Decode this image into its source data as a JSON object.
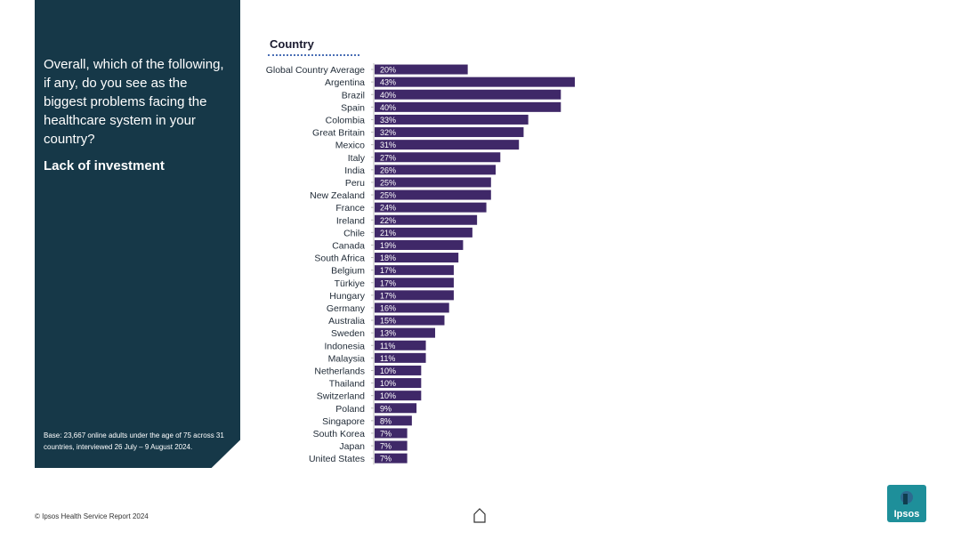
{
  "panel": {
    "question": "Overall, which of the following, if any, do you see as the biggest problems facing the healthcare system in your country?",
    "subtitle": "Lack of investment",
    "base_note": "Base: 23,667 online adults under the age of 75 across 31 countries, interviewed 26 July – 9 August 2024."
  },
  "chart_heading": "Country",
  "footer": "© Ipsos Health Service Report 2024",
  "logo_text": "Ipsos",
  "colors": {
    "panel": "#163848",
    "bar": "#3f2868",
    "label": "#ffffff",
    "logo": "#1e8f9a"
  },
  "chart_data": {
    "type": "bar",
    "orientation": "horizontal",
    "categories": [
      "Global Country Average",
      "Argentina",
      "Brazil",
      "Spain",
      "Colombia",
      "Great Britain",
      "Mexico",
      "Italy",
      "India",
      "Peru",
      "New Zealand",
      "France",
      "Ireland",
      "Chile",
      "Canada",
      "South Africa",
      "Belgium",
      "Türkiye",
      "Hungary",
      "Germany",
      "Australia",
      "Sweden",
      "Indonesia",
      "Malaysia",
      "Netherlands",
      "Thailand",
      "Switzerland",
      "Poland",
      "Singapore",
      "South Korea",
      "Japan",
      "United States"
    ],
    "values": [
      20,
      43,
      40,
      40,
      33,
      32,
      31,
      27,
      26,
      25,
      25,
      24,
      22,
      21,
      19,
      18,
      17,
      17,
      17,
      16,
      15,
      13,
      11,
      11,
      10,
      10,
      10,
      9,
      8,
      7,
      7,
      7
    ],
    "value_labels": [
      "20%",
      "43%",
      "40%",
      "40%",
      "33%",
      "32%",
      "31%",
      "27%",
      "26%",
      "25%",
      "25%",
      "24%",
      "22%",
      "21%",
      "19%",
      "18%",
      "17%",
      "17%",
      "17%",
      "16%",
      "15%",
      "13%",
      "11%",
      "11%",
      "10%",
      "10%",
      "10%",
      "9%",
      "8%",
      "7%",
      "7%",
      "7%"
    ],
    "xlim": [
      0,
      43
    ],
    "grid": false,
    "legend": "none"
  }
}
